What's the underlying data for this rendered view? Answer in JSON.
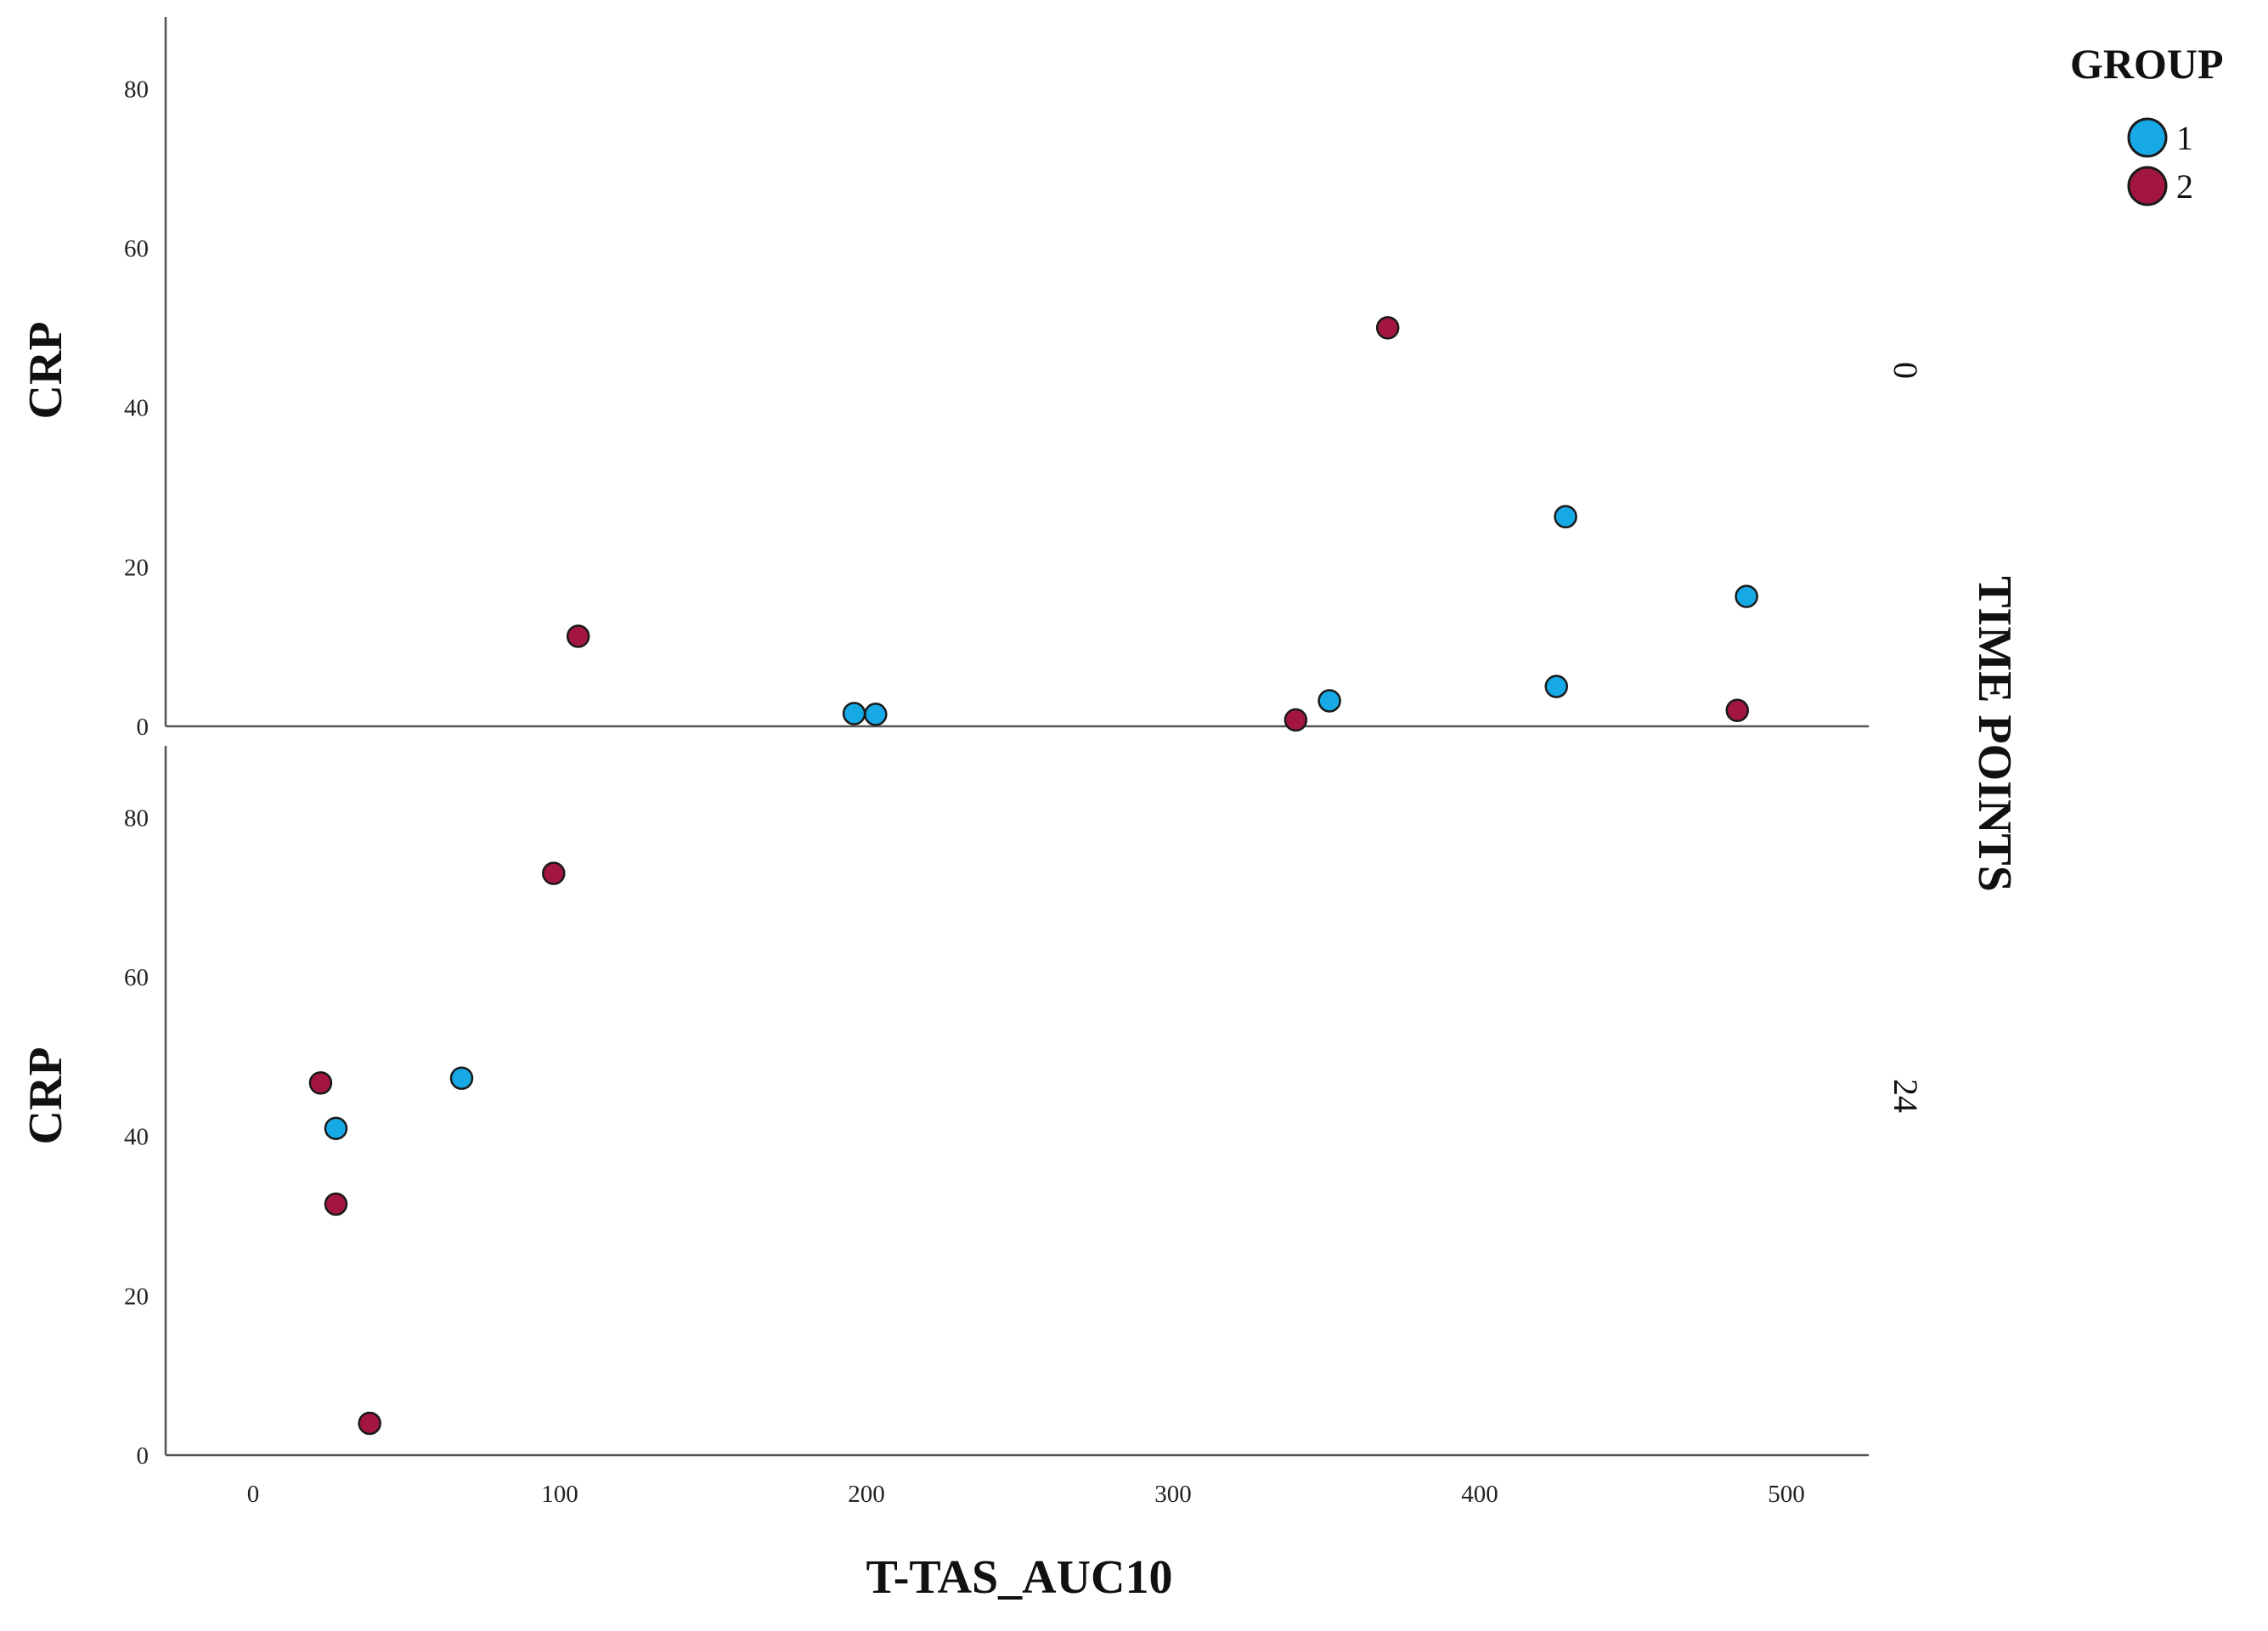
{
  "chart_data": {
    "type": "scatter",
    "xlabel": "T-TAS_AUC10",
    "ylabel": "CRP",
    "xlim": [
      -28,
      525
    ],
    "ylim": [
      0,
      89
    ],
    "x_ticks": [
      0,
      100,
      200,
      300,
      400,
      500
    ],
    "y_ticks": [
      0,
      20,
      40,
      60,
      80
    ],
    "facet_title": "TIME POINTS",
    "legend": {
      "title": "GROUP",
      "position": "top-right"
    },
    "series": [
      {
        "name": "1",
        "color": "#17a9e6"
      },
      {
        "name": "2",
        "color": "#a3163f"
      }
    ],
    "panels": [
      {
        "facet_label": "0",
        "points": [
          {
            "x": 196,
            "y": 1.6,
            "series": "1"
          },
          {
            "x": 203,
            "y": 1.5,
            "series": "1"
          },
          {
            "x": 351,
            "y": 3.2,
            "series": "1"
          },
          {
            "x": 425,
            "y": 5.0,
            "series": "1"
          },
          {
            "x": 428,
            "y": 26.3,
            "series": "1"
          },
          {
            "x": 487,
            "y": 16.3,
            "series": "1"
          },
          {
            "x": 106,
            "y": 11.3,
            "series": "2"
          },
          {
            "x": 340,
            "y": 0.8,
            "series": "2"
          },
          {
            "x": 370,
            "y": 50.0,
            "series": "2"
          },
          {
            "x": 484,
            "y": 2.0,
            "series": "2"
          }
        ]
      },
      {
        "facet_label": "24",
        "points": [
          {
            "x": 27,
            "y": 41.0,
            "series": "1"
          },
          {
            "x": 68,
            "y": 47.3,
            "series": "1"
          },
          {
            "x": 22,
            "y": 46.7,
            "series": "2"
          },
          {
            "x": 27,
            "y": 31.5,
            "series": "2"
          },
          {
            "x": 38,
            "y": 4.0,
            "series": "2"
          },
          {
            "x": 98,
            "y": 73.0,
            "series": "2"
          }
        ]
      }
    ]
  }
}
